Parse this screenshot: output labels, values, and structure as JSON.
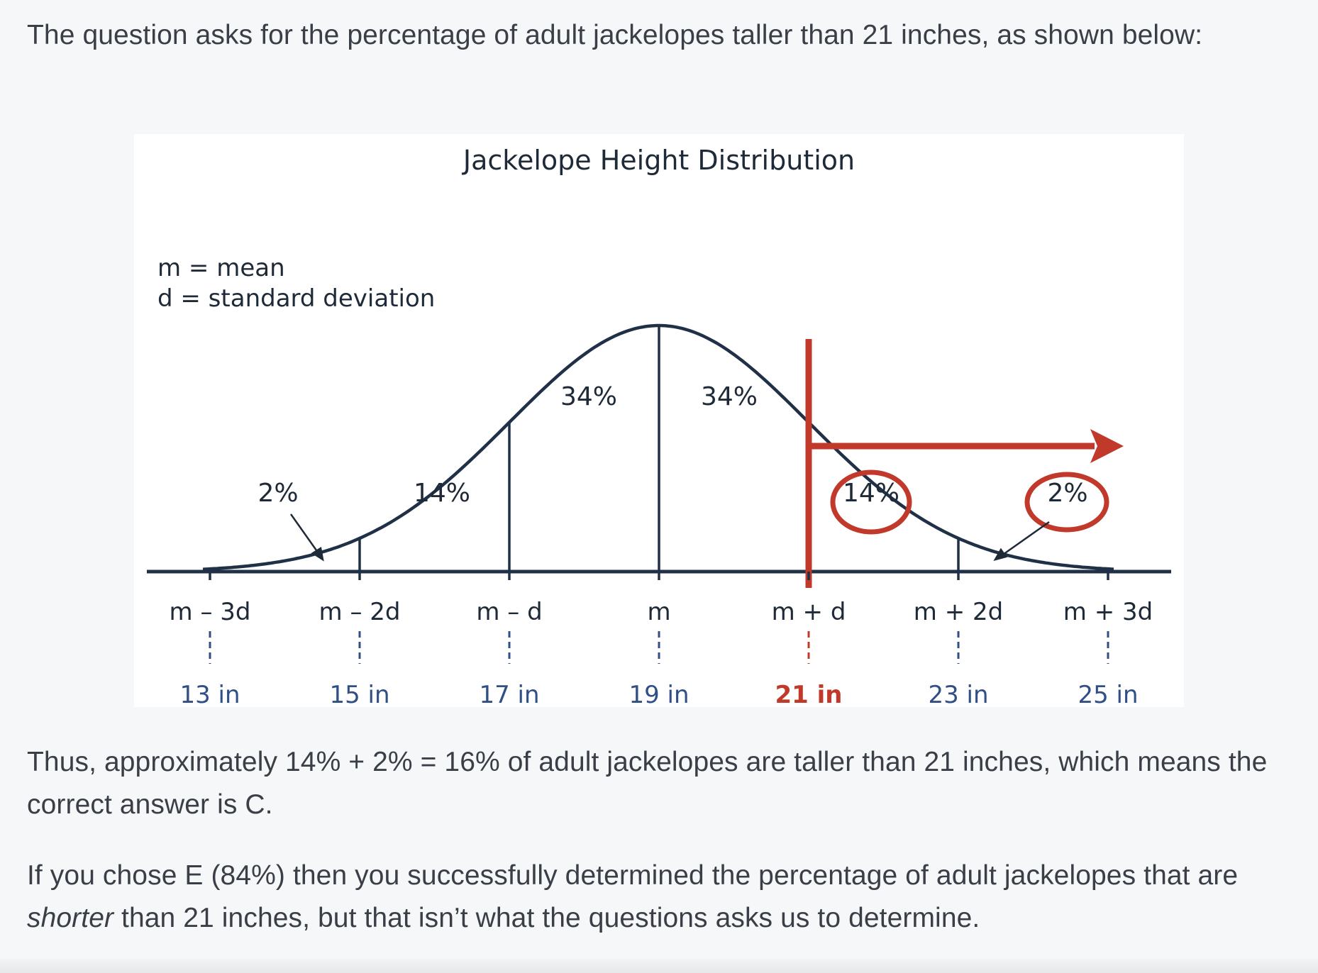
{
  "intro": "The question asks for the percentage of adult jackelopes taller than 21 inches, as shown below:",
  "figure": {
    "title": "Jackelope Height Distribution",
    "legend_mean": "m = mean",
    "legend_sd": "d = standard deviation",
    "region_labels": [
      "2%",
      "14%",
      "34%",
      "34%",
      "14%",
      "2%"
    ],
    "circled_regions": [
      "14%",
      "2%"
    ],
    "tick_labels": [
      "m – 3d",
      "m – 2d",
      "m – d",
      "m",
      "m + d",
      "m + 2d",
      "m + 3d"
    ],
    "tick_values": [
      "13 in",
      "15 in",
      "17 in",
      "19 in",
      "21 in",
      "23 in",
      "25 in"
    ],
    "highlight_value": "21 in",
    "colors": {
      "curve": "#1f3047",
      "highlight": "#c0392b",
      "value_text": "#2f4f86"
    }
  },
  "conclusion": "Thus, approximately 14% + 2% = 16% of adult jackelopes are taller than 21 inches, which means the correct answer is C.",
  "followup": {
    "before": "If you chose E (84%) then you successfully determined the percentage of adult jackelopes that are ",
    "emphasis": "shorter",
    "after": " than 21 inches, but that isn’t what the questions asks us to determine."
  }
}
